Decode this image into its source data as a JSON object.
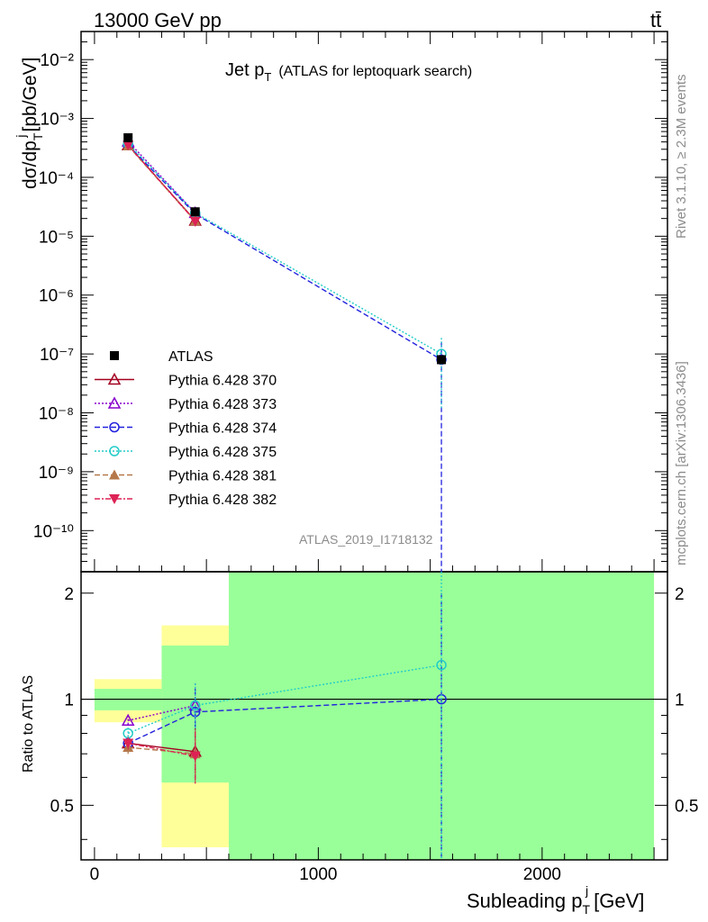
{
  "header": {
    "left": "13000 GeV pp",
    "right": "tt̄"
  },
  "side": {
    "rivet": "Rivet 3.1.10, ≥ 2.3M events",
    "mcplots": "mcplots.cern.ch [arXiv:1306.3436]"
  },
  "chart_data": {
    "type": "line",
    "title_main": "Jet p",
    "title_sub": "T",
    "title_rest": "(ATLAS for leptoquark search)",
    "analysis_id": "ATLAS_2019_I1718132",
    "ylabel_main": "dσ/dp",
    "ylabel_sub": "T",
    "ylabel_sup": "j",
    "ylabel_unit": "[pb/GeV]",
    "xlabel_main": "Subleading p",
    "xlabel_sub": "T",
    "xlabel_sup": "j",
    "xlabel_unit": "[GeV]",
    "ratio_ylabel": "Ratio to ATLAS",
    "y_scale": "log",
    "ylim": [
      2e-11,
      0.03
    ],
    "xlim": [
      -60,
      2560
    ],
    "ratio_ylim": [
      0.35,
      2.3
    ],
    "y_ticks": [
      "10⁻¹⁰",
      "10⁻⁹",
      "10⁻⁸",
      "10⁻⁷",
      "10⁻⁶",
      "10⁻⁵",
      "10⁻⁴",
      "10⁻³",
      "10⁻²"
    ],
    "x_ticks": [
      "0",
      "1000",
      "2000"
    ],
    "ratio_ticks": [
      "0.5",
      "1",
      "2"
    ],
    "legend_position": "middle-left",
    "data": {
      "name": "ATLAS",
      "x": [
        150,
        450,
        1550
      ],
      "y": [
        0.00047,
        2.6e-05,
        8e-08
      ],
      "bins": [
        [
          0,
          300
        ],
        [
          300,
          600
        ],
        [
          600,
          2500
        ]
      ],
      "band_stat": [
        0.07,
        0.42,
        1.4
      ],
      "band_total": [
        0.14,
        0.62,
        1.4
      ]
    },
    "series": [
      {
        "name": "Pythia 6.428 370",
        "color": "#a3001f",
        "dash": "",
        "marker": "tri-open",
        "x": [
          150,
          450
        ],
        "ratio": [
          0.75,
          0.71
        ],
        "ratio_err": [
          0.03,
          0.12
        ]
      },
      {
        "name": "Pythia 6.428 373",
        "color": "#8800cc",
        "dash": "2,2",
        "marker": "tri-open",
        "x": [
          150,
          450
        ],
        "ratio": [
          0.87,
          0.96
        ],
        "ratio_err": [
          0.03,
          0.15
        ]
      },
      {
        "name": "Pythia 6.428 374",
        "color": "#2222dd",
        "dash": "6,3",
        "marker": "circle-open",
        "x": [
          150,
          450,
          1550
        ],
        "ratio": [
          0.75,
          0.92,
          1.0
        ],
        "ratio_err": [
          0.03,
          0.15,
          1.0
        ]
      },
      {
        "name": "Pythia 6.428 375",
        "color": "#22ccc8",
        "dash": "2,2",
        "marker": "circle-open",
        "x": [
          150,
          450,
          1550
        ],
        "ratio": [
          0.8,
          0.96,
          1.25
        ],
        "ratio_err": [
          0.03,
          0.15,
          1.1
        ]
      },
      {
        "name": "Pythia 6.428 381",
        "color": "#b5784a",
        "dash": "6,3",
        "marker": "tri-filled",
        "x": [
          150,
          450
        ],
        "ratio": [
          0.73,
          0.7
        ],
        "ratio_err": [
          0.03,
          0.12
        ]
      },
      {
        "name": "Pythia 6.428 382",
        "color": "#dd2255",
        "dash": "6,2,2,2",
        "marker": "tri-down-filled",
        "x": [
          150,
          450
        ],
        "ratio": [
          0.75,
          0.69
        ],
        "ratio_err": [
          0.03,
          0.12
        ]
      }
    ]
  }
}
